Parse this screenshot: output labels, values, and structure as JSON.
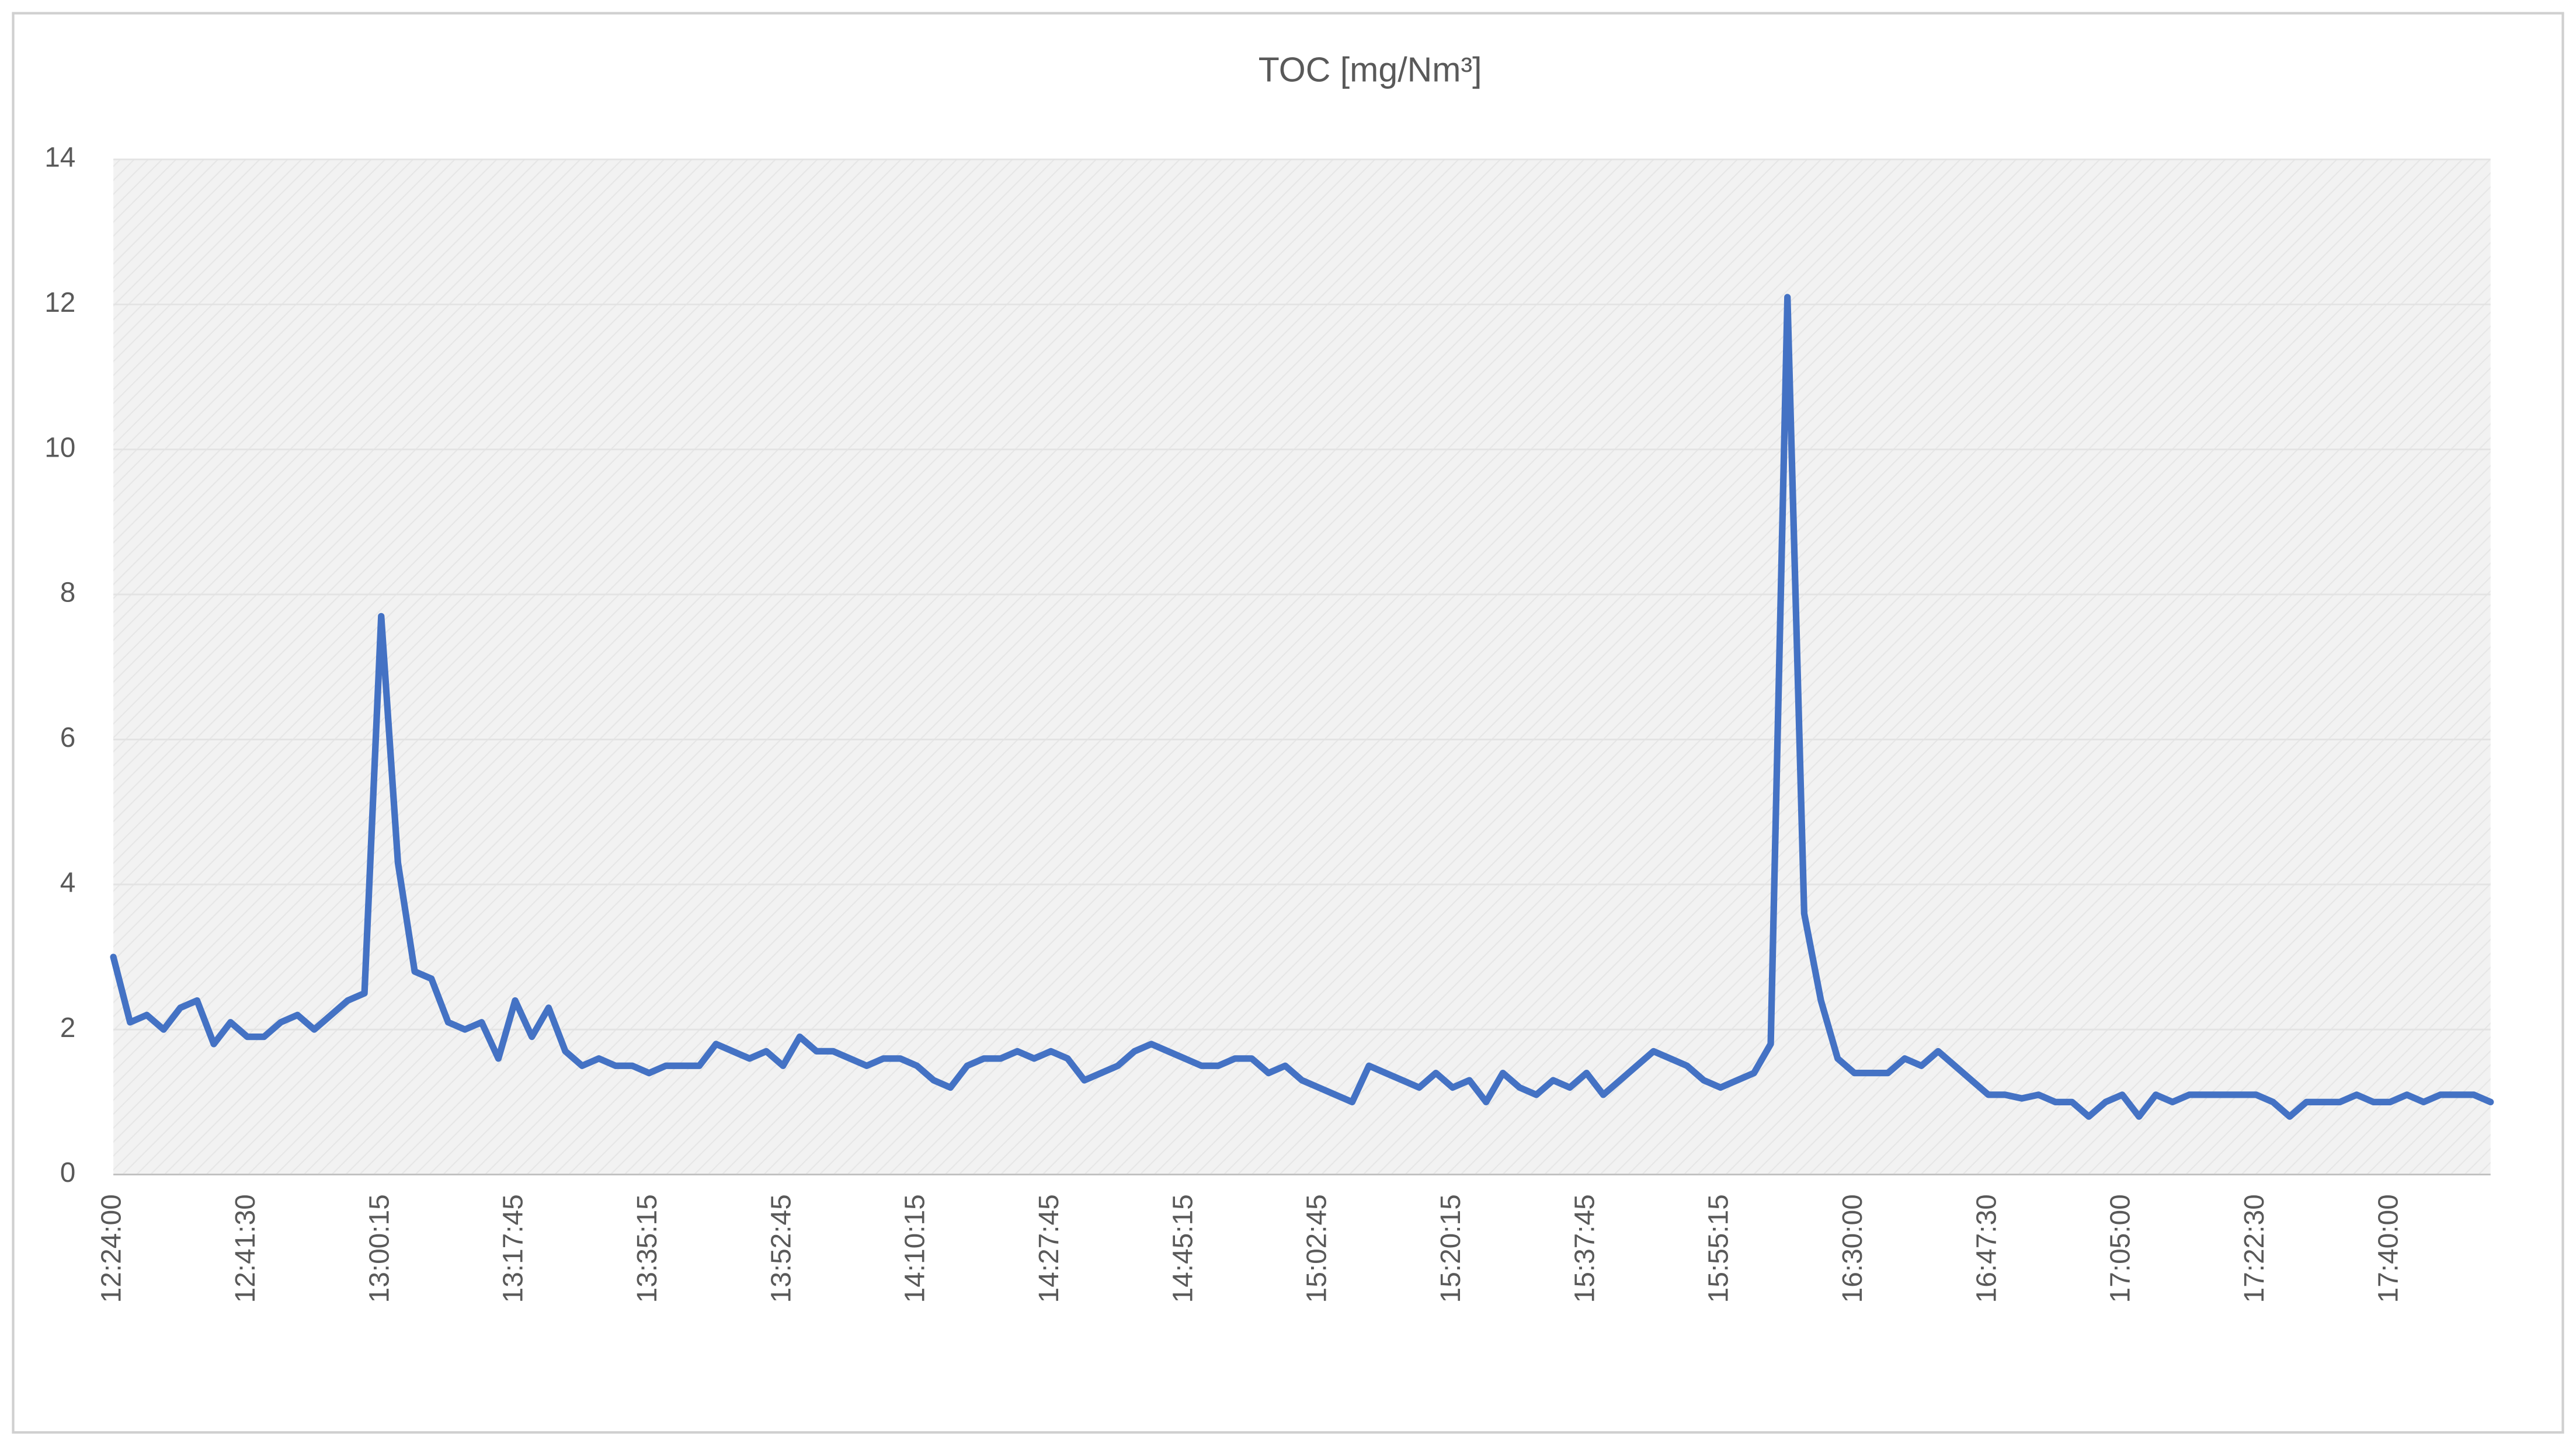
{
  "chart_data": {
    "type": "line",
    "title": "TOC [mg/Nm³]",
    "categories": [
      "12:24:00",
      null,
      null,
      null,
      null,
      null,
      null,
      null,
      "12:41:30",
      null,
      null,
      null,
      null,
      null,
      null,
      null,
      "13:00:15",
      null,
      null,
      null,
      null,
      null,
      null,
      null,
      "13:17:45",
      null,
      null,
      null,
      null,
      null,
      null,
      null,
      "13:35:15",
      null,
      null,
      null,
      null,
      null,
      null,
      null,
      "13:52:45",
      null,
      null,
      null,
      null,
      null,
      null,
      null,
      "14:10:15",
      null,
      null,
      null,
      null,
      null,
      null,
      null,
      "14:27:45",
      null,
      null,
      null,
      null,
      null,
      null,
      null,
      "14:45:15",
      null,
      null,
      null,
      null,
      null,
      null,
      null,
      "15:02:45",
      null,
      null,
      null,
      null,
      null,
      null,
      null,
      "15:20:15",
      null,
      null,
      null,
      null,
      null,
      null,
      null,
      "15:37:45",
      null,
      null,
      null,
      null,
      null,
      null,
      null,
      "15:55:15",
      null,
      null,
      null,
      null,
      null,
      null,
      null,
      "16:30:00",
      null,
      null,
      null,
      null,
      null,
      null,
      null,
      "16:47:30",
      null,
      null,
      null,
      null,
      null,
      null,
      null,
      "17:05:00",
      null,
      null,
      null,
      null,
      null,
      null,
      null,
      "17:22:30",
      null,
      null,
      null,
      null,
      null,
      null,
      null,
      "17:40:00",
      null,
      null,
      null,
      null,
      null,
      null
    ],
    "values": [
      3.0,
      2.1,
      2.2,
      2.0,
      2.3,
      2.4,
      1.8,
      2.1,
      1.9,
      1.9,
      2.1,
      2.2,
      2.0,
      2.2,
      2.4,
      2.5,
      7.7,
      4.3,
      2.8,
      2.7,
      2.1,
      2.0,
      2.1,
      1.6,
      2.4,
      1.9,
      2.3,
      1.7,
      1.5,
      1.6,
      1.5,
      1.5,
      1.4,
      1.5,
      1.5,
      1.5,
      1.8,
      1.7,
      1.6,
      1.7,
      1.5,
      1.9,
      1.7,
      1.7,
      1.6,
      1.5,
      1.6,
      1.6,
      1.5,
      1.3,
      1.2,
      1.5,
      1.6,
      1.6,
      1.7,
      1.6,
      1.7,
      1.6,
      1.3,
      1.4,
      1.5,
      1.7,
      1.8,
      1.7,
      1.6,
      1.5,
      1.5,
      1.6,
      1.6,
      1.4,
      1.5,
      1.3,
      1.2,
      1.1,
      1.0,
      1.5,
      1.4,
      1.3,
      1.2,
      1.4,
      1.2,
      1.3,
      1.0,
      1.4,
      1.2,
      1.1,
      1.3,
      1.2,
      1.4,
      1.1,
      1.3,
      1.5,
      1.7,
      1.6,
      1.5,
      1.3,
      1.2,
      1.3,
      1.4,
      1.8,
      12.1,
      3.6,
      2.4,
      1.6,
      1.4,
      1.4,
      1.4,
      1.6,
      1.5,
      1.7,
      1.5,
      1.3,
      1.1,
      1.1,
      1.05,
      1.1,
      1.0,
      1.0,
      0.8,
      1.0,
      1.1,
      0.8,
      1.1,
      1.0,
      1.1,
      1.1,
      1.1,
      1.1,
      1.1,
      1.0,
      0.8,
      1.0,
      1.0,
      1.0,
      1.1,
      1.0,
      1.0,
      1.1,
      1.0,
      1.1,
      1.1,
      1.1,
      1.0
    ],
    "color": "#4472c4",
    "ylim": [
      0,
      14
    ],
    "yticks": [
      0,
      2,
      4,
      6,
      8,
      10,
      12,
      14
    ],
    "grid": true
  }
}
